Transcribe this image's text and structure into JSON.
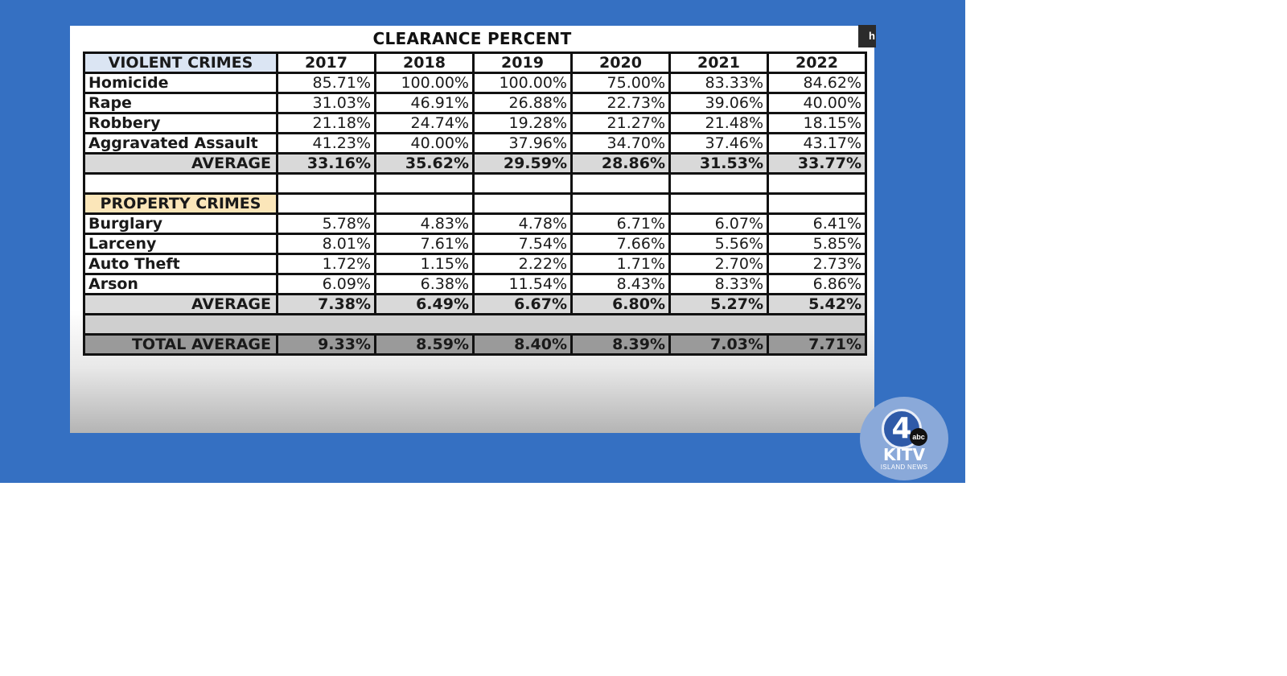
{
  "title": "CLEARANCE PERCENT",
  "corner_tab": "h",
  "years": [
    "2017",
    "2018",
    "2019",
    "2020",
    "2021",
    "2022"
  ],
  "violent": {
    "header": "VIOLENT CRIMES",
    "rows": [
      {
        "label": "Homicide",
        "values": [
          "85.71%",
          "100.00%",
          "100.00%",
          "75.00%",
          "83.33%",
          "84.62%"
        ]
      },
      {
        "label": "Rape",
        "values": [
          "31.03%",
          "46.91%",
          "26.88%",
          "22.73%",
          "39.06%",
          "40.00%"
        ]
      },
      {
        "label": "Robbery",
        "values": [
          "21.18%",
          "24.74%",
          "19.28%",
          "21.27%",
          "21.48%",
          "18.15%"
        ]
      },
      {
        "label": "Aggravated Assault",
        "values": [
          "41.23%",
          "40.00%",
          "37.96%",
          "34.70%",
          "37.46%",
          "43.17%"
        ]
      }
    ],
    "average_label": "AVERAGE",
    "average": [
      "33.16%",
      "35.62%",
      "29.59%",
      "28.86%",
      "31.53%",
      "33.77%"
    ]
  },
  "property": {
    "header": "PROPERTY CRIMES",
    "rows": [
      {
        "label": "Burglary",
        "values": [
          "5.78%",
          "4.83%",
          "4.78%",
          "6.71%",
          "6.07%",
          "6.41%"
        ]
      },
      {
        "label": "Larceny",
        "values": [
          "8.01%",
          "7.61%",
          "7.54%",
          "7.66%",
          "5.56%",
          "5.85%"
        ]
      },
      {
        "label": "Auto Theft",
        "values": [
          "1.72%",
          "1.15%",
          "2.22%",
          "1.71%",
          "2.70%",
          "2.73%"
        ]
      },
      {
        "label": "Arson",
        "values": [
          "6.09%",
          "6.38%",
          "11.54%",
          "8.43%",
          "8.33%",
          "6.86%"
        ]
      }
    ],
    "average_label": "AVERAGE",
    "average": [
      "7.38%",
      "6.49%",
      "6.67%",
      "6.80%",
      "5.27%",
      "5.42%"
    ]
  },
  "total": {
    "label": "TOTAL AVERAGE",
    "values": [
      "9.33%",
      "8.59%",
      "8.40%",
      "8.39%",
      "7.03%",
      "7.71%"
    ]
  },
  "logo": {
    "number": "4",
    "network": "abc",
    "name": "KITV",
    "tagline": "ISLAND NEWS"
  },
  "colors": {
    "background": "#3570c2",
    "violent_header": "#dbe5f3",
    "property_header": "#fbe6b9"
  }
}
